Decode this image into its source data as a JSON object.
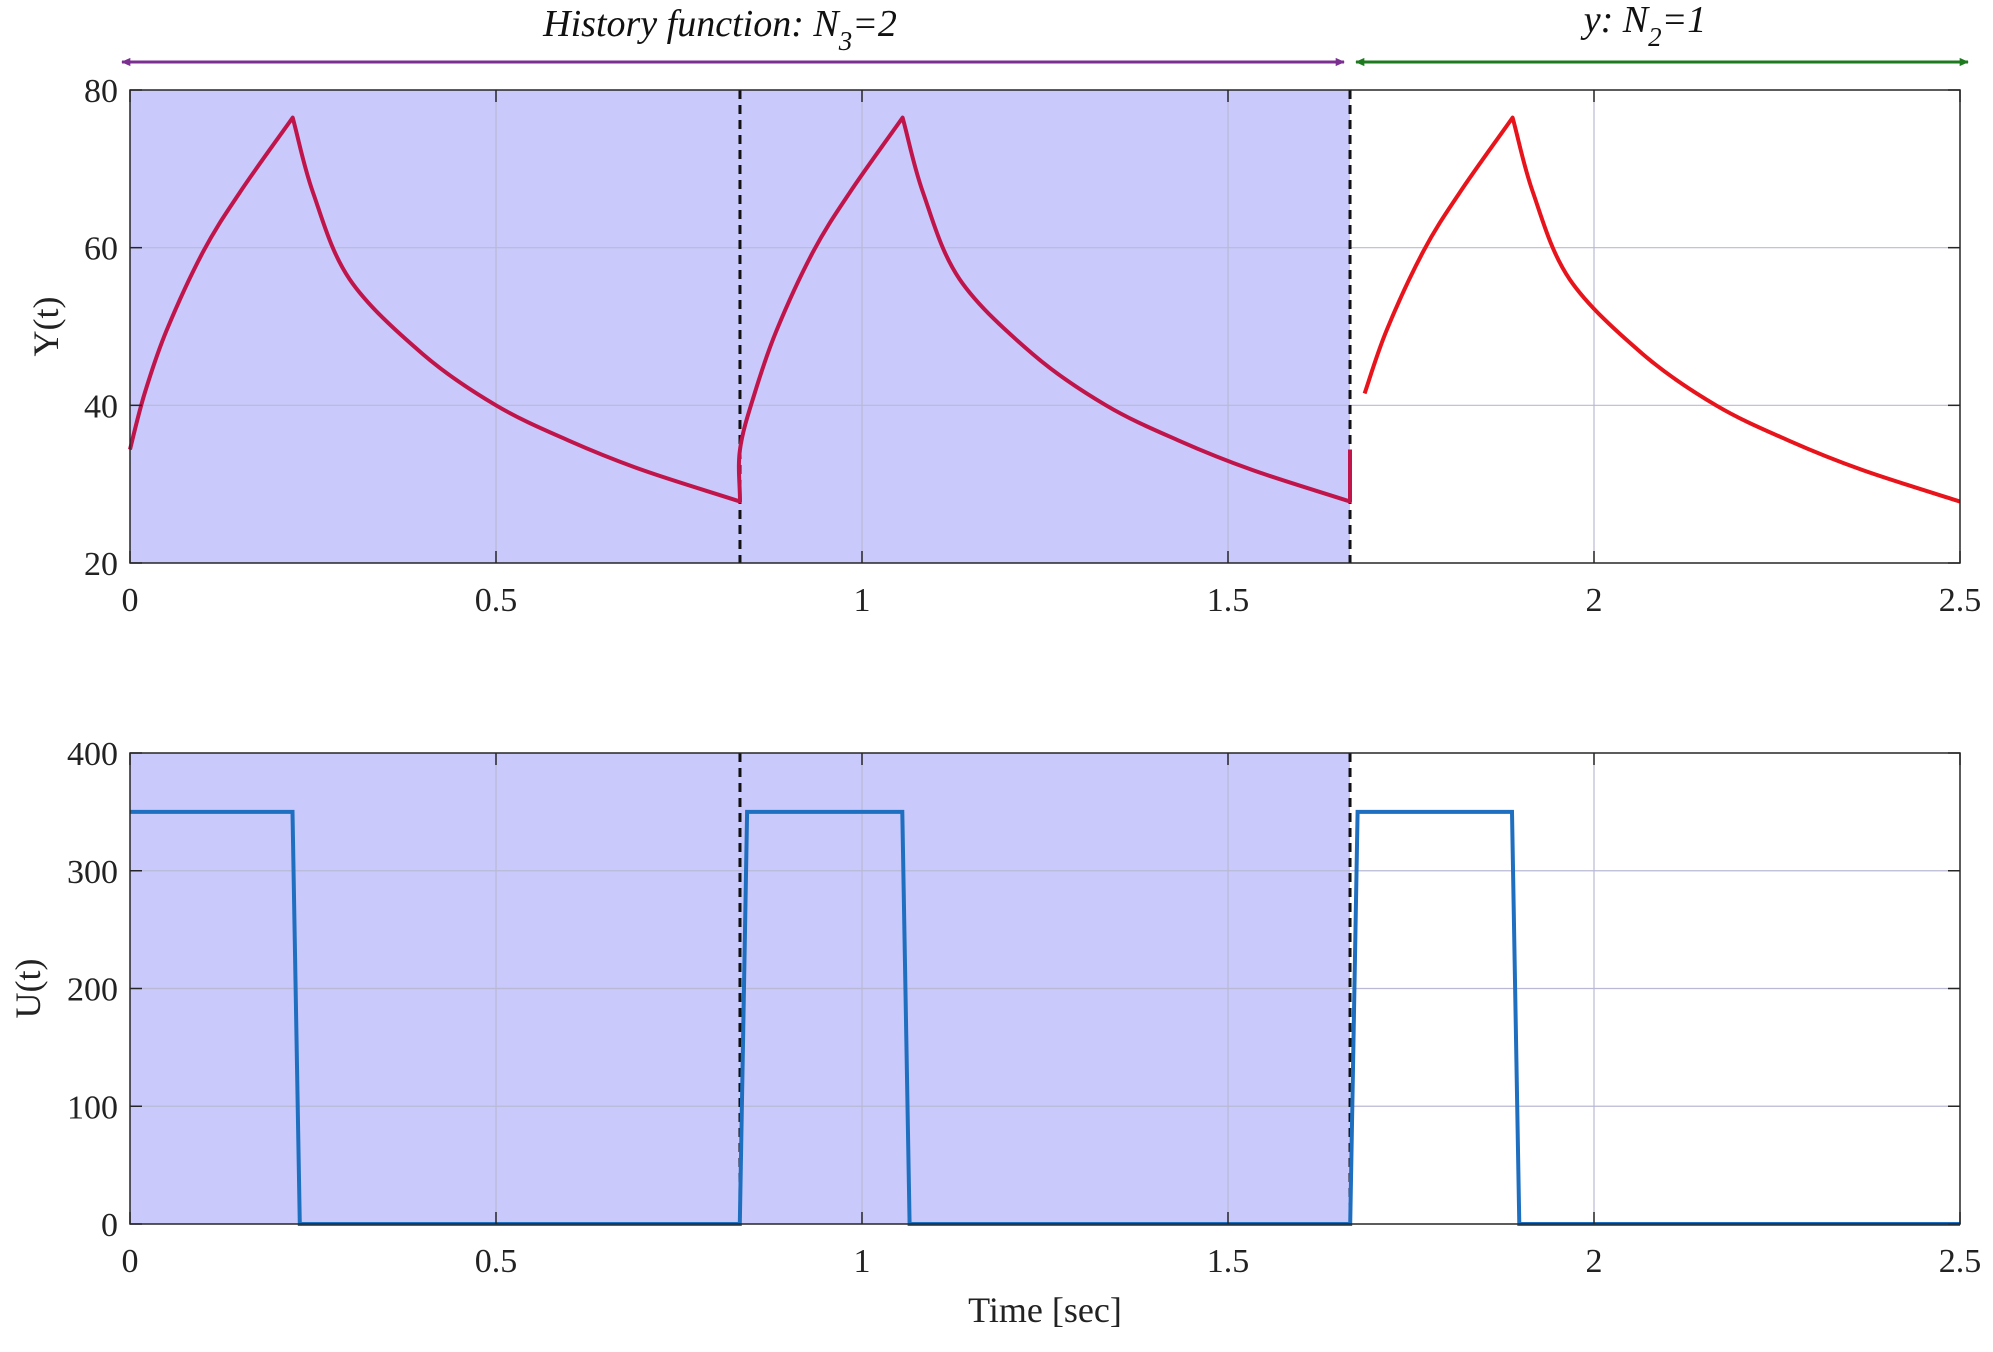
{
  "chart_data": [
    {
      "type": "line",
      "ylabel": "Y(t)",
      "xlabel": "",
      "xlim": [
        0,
        2.5
      ],
      "ylim": [
        20,
        80
      ],
      "xticks": [
        0,
        0.5,
        1,
        1.5,
        2,
        2.5
      ],
      "xtick_labels": [
        "0",
        "0.5",
        "1",
        "1.5",
        "2",
        "2.5"
      ],
      "yticks": [
        20,
        40,
        60,
        80
      ],
      "ytick_labels": [
        "20",
        "40",
        "60",
        "80"
      ],
      "grid": true,
      "shaded_region": {
        "x": [
          0,
          1.6667
        ],
        "color": "#c9c9fb"
      },
      "dashed_vlines": [
        0.8333,
        1.6667
      ],
      "period": 0.8333,
      "on_duration": 0.2222,
      "cycle_values": {
        "t": [
          0,
          0.02,
          0.05,
          0.1,
          0.15,
          0.2222,
          0.25,
          0.3,
          0.4,
          0.5,
          0.6,
          0.7,
          0.8333
        ],
        "y": [
          34.4,
          41.5,
          49.5,
          59.5,
          67.0,
          76.5,
          67.0,
          56.0,
          46.5,
          40.0,
          35.5,
          31.8,
          27.8
        ]
      },
      "series": [
        {
          "name": "",
          "color": "#c0154a",
          "x_range": [
            0,
            1.6667
          ]
        },
        {
          "name": "",
          "color": "#e8141c",
          "x_range": [
            1.6667,
            2.5
          ]
        }
      ]
    },
    {
      "type": "line",
      "ylabel": "U(t)",
      "xlabel": "Time [sec]",
      "xlim": [
        0,
        2.5
      ],
      "ylim": [
        0,
        400
      ],
      "xticks": [
        0,
        0.5,
        1,
        1.5,
        2,
        2.5
      ],
      "xtick_labels": [
        "0",
        "0.5",
        "1",
        "1.5",
        "2",
        "2.5"
      ],
      "yticks": [
        0,
        100,
        200,
        300,
        400
      ],
      "ytick_labels": [
        "0",
        "100",
        "200",
        "300",
        "400"
      ],
      "grid": true,
      "shaded_region": {
        "x": [
          0,
          1.6667
        ],
        "color": "#c9c9fb"
      },
      "dashed_vlines": [
        0.8333,
        1.6667
      ],
      "series": [
        {
          "name": "",
          "color": "#1f6fc0",
          "x": [
            0,
            0.222,
            0.232,
            0.833,
            0.843,
            1.055,
            1.065,
            1.667,
            1.677,
            1.888,
            1.898,
            2.5
          ],
          "y": [
            350,
            350,
            0,
            0,
            350,
            350,
            0,
            0,
            350,
            350,
            0,
            0
          ]
        }
      ]
    }
  ],
  "annotations": {
    "history": {
      "text": "History function: N",
      "sub": "3",
      "suffix": "=2",
      "color": "#7b2f90",
      "x_range": [
        0,
        1.6667
      ]
    },
    "y": {
      "text": "y: N",
      "sub": "2",
      "suffix": "=1",
      "color": "#1e7a1e",
      "x_range": [
        1.6667,
        2.5
      ]
    }
  }
}
